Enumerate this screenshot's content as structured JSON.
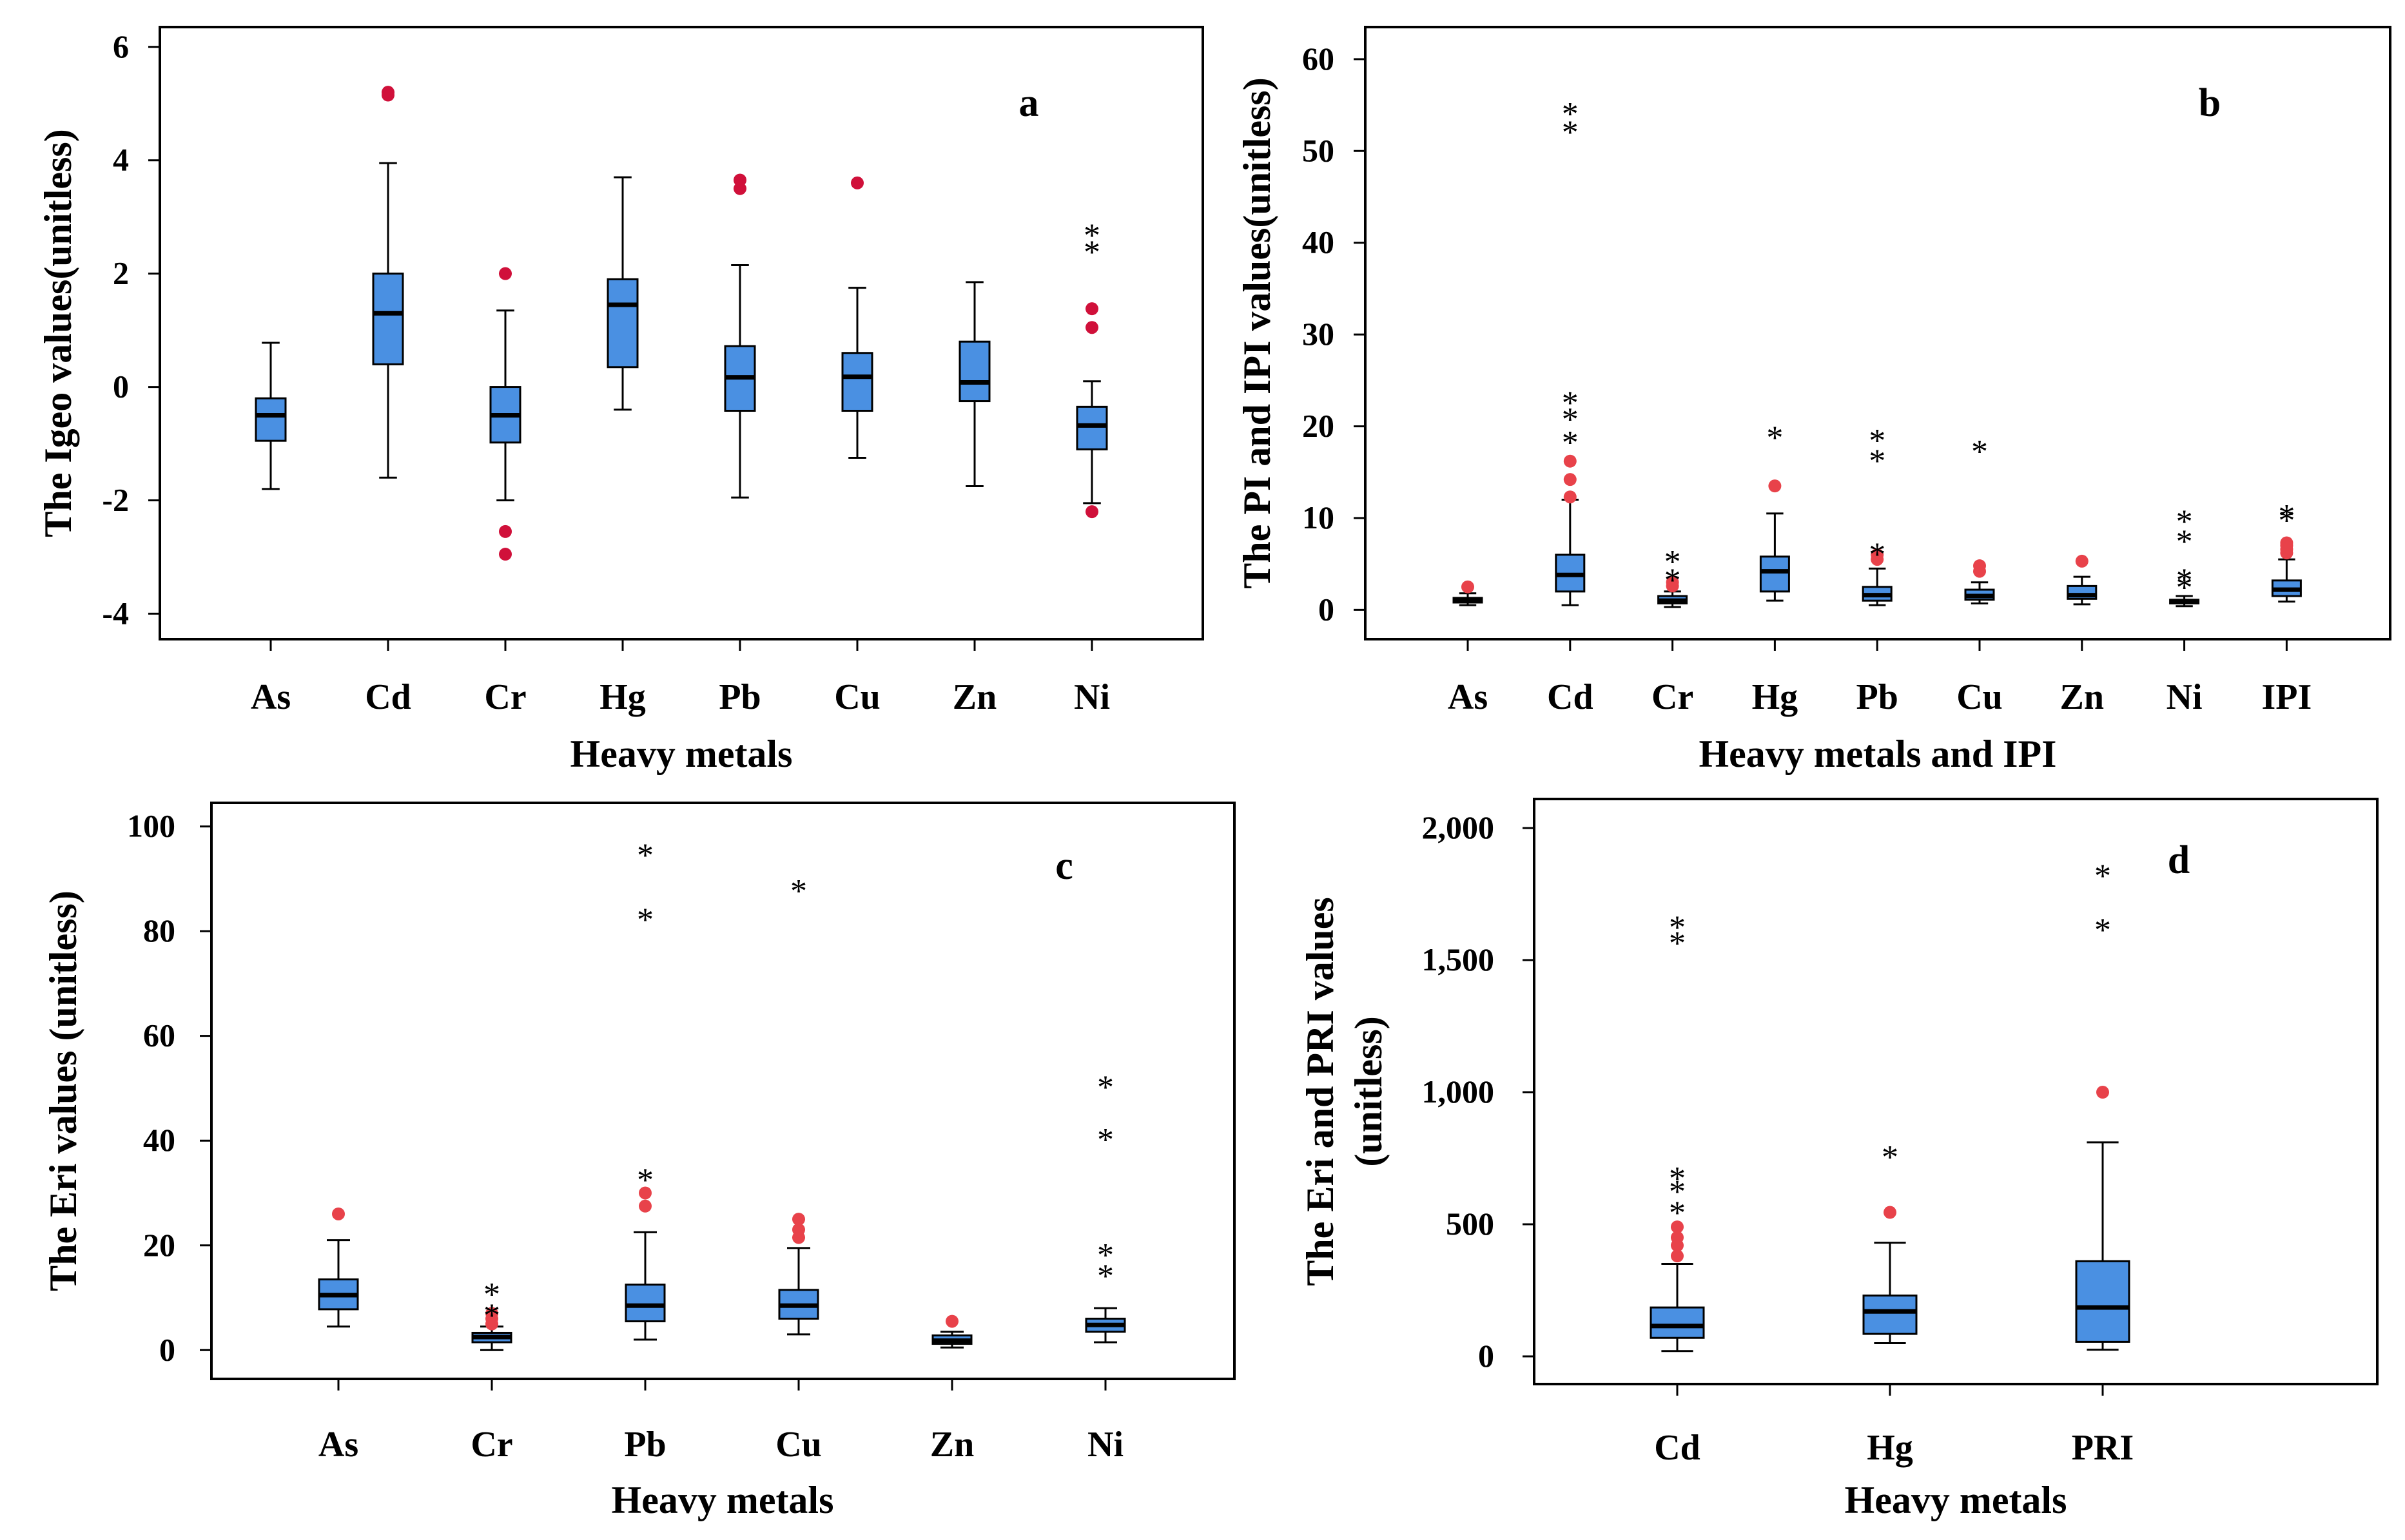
{
  "colors": {
    "box_fill": "#4a90e2",
    "outlier": "#e8424a",
    "outlier_a": "#d0103a",
    "ink": "#000000"
  },
  "chart_data": [
    {
      "id": "a",
      "type": "box",
      "letter": "a",
      "ylabel": "The Igeo values(unitless)",
      "xlabel": "Heavy metals",
      "ylim": [
        -4.45,
        6.35
      ],
      "yticks": [
        -4,
        -2,
        0,
        2,
        4,
        6
      ],
      "ytick_labels": [
        "-4",
        "-2",
        "0",
        "2",
        "4",
        "6"
      ],
      "outlier_color": "#d0103a",
      "boxes": [
        {
          "cat": "As",
          "min": -1.8,
          "q1": -0.95,
          "med": -0.5,
          "q3": -0.2,
          "max": 0.78,
          "outliers": [],
          "extremes": []
        },
        {
          "cat": "Cd",
          "min": -1.6,
          "q1": 0.4,
          "med": 1.3,
          "q3": 2.0,
          "max": 3.95,
          "outliers": [
            5.15,
            5.2
          ],
          "extremes": []
        },
        {
          "cat": "Cr",
          "min": -2.0,
          "q1": -0.98,
          "med": -0.5,
          "q3": 0.0,
          "max": 1.35,
          "outliers": [
            2.0,
            -2.55,
            -2.95
          ],
          "extremes": []
        },
        {
          "cat": "Hg",
          "min": -0.4,
          "q1": 0.35,
          "med": 1.45,
          "q3": 1.9,
          "max": 3.7,
          "outliers": [],
          "extremes": []
        },
        {
          "cat": "Pb",
          "min": -1.95,
          "q1": -0.42,
          "med": 0.17,
          "q3": 0.72,
          "max": 2.15,
          "outliers": [
            3.65,
            3.5
          ],
          "extremes": []
        },
        {
          "cat": "Cu",
          "min": -1.25,
          "q1": -0.42,
          "med": 0.18,
          "q3": 0.6,
          "max": 1.75,
          "outliers": [
            3.6
          ],
          "extremes": []
        },
        {
          "cat": "Zn",
          "min": -1.75,
          "q1": -0.25,
          "med": 0.08,
          "q3": 0.8,
          "max": 1.85,
          "outliers": [],
          "extremes": []
        },
        {
          "cat": "Ni",
          "min": -2.05,
          "q1": -1.1,
          "med": -0.68,
          "q3": -0.35,
          "max": 0.1,
          "outliers": [
            1.38,
            1.05,
            -2.2
          ],
          "extremes": [
            2.8,
            2.5
          ]
        }
      ]
    },
    {
      "id": "b",
      "type": "box",
      "letter": "b",
      "ylabel": "The PI and IPI values(unitless)",
      "xlabel": "Heavy metals and IPI",
      "ylim": [
        -3.2,
        63.5
      ],
      "yticks": [
        0,
        10,
        20,
        30,
        40,
        50,
        60
      ],
      "ytick_labels": [
        "0",
        "10",
        "20",
        "30",
        "40",
        "50",
        "60"
      ],
      "outlier_color": "#e8424a",
      "boxes": [
        {
          "cat": "As",
          "min": 0.5,
          "q1": 0.8,
          "med": 1.0,
          "q3": 1.3,
          "max": 1.8,
          "outliers": [
            2.5
          ],
          "extremes": []
        },
        {
          "cat": "Cd",
          "min": 0.5,
          "q1": 2.0,
          "med": 3.8,
          "q3": 6.0,
          "max": 12.0,
          "outliers": [
            12.3,
            14.2,
            16.2
          ],
          "extremes": [
            19,
            21.5,
            23.3,
            52.8,
            54.8
          ]
        },
        {
          "cat": "Cr",
          "min": 0.3,
          "q1": 0.7,
          "med": 1.0,
          "q3": 1.5,
          "max": 2.0,
          "outliers": [
            2.6,
            3.0
          ],
          "extremes": [
            4.0,
            6.0
          ]
        },
        {
          "cat": "Hg",
          "min": 1.0,
          "q1": 2.0,
          "med": 4.2,
          "q3": 5.8,
          "max": 10.5,
          "outliers": [
            13.5
          ],
          "extremes": [
            19.5
          ]
        },
        {
          "cat": "Pb",
          "min": 0.5,
          "q1": 1.0,
          "med": 1.6,
          "q3": 2.5,
          "max": 4.5,
          "outliers": [
            5.5,
            6.0
          ],
          "extremes": [
            6.8,
            17.0,
            19.2
          ]
        },
        {
          "cat": "Cu",
          "min": 0.7,
          "q1": 1.1,
          "med": 1.5,
          "q3": 2.2,
          "max": 3.0,
          "outliers": [
            4.2,
            4.8
          ],
          "extremes": [
            18.0
          ]
        },
        {
          "cat": "Zn",
          "min": 0.6,
          "q1": 1.2,
          "med": 1.6,
          "q3": 2.6,
          "max": 3.6,
          "outliers": [
            5.3
          ],
          "extremes": []
        },
        {
          "cat": "Ni",
          "min": 0.4,
          "q1": 0.7,
          "med": 0.9,
          "q3": 1.1,
          "max": 1.5,
          "outliers": [],
          "extremes": [
            3.2,
            4.0,
            8.2,
            10.4
          ]
        },
        {
          "cat": "IPI",
          "min": 0.9,
          "q1": 1.5,
          "med": 2.2,
          "q3": 3.2,
          "max": 5.5,
          "outliers": [
            6.2,
            6.6,
            7.0,
            7.3
          ],
          "extremes": [
            10.5,
            11.0
          ]
        }
      ]
    },
    {
      "id": "c",
      "type": "box",
      "letter": "c",
      "ylabel": "The Eri values (unitless)",
      "xlabel": "Heavy metals",
      "ylim": [
        -5.5,
        104.5
      ],
      "yticks": [
        0,
        20,
        40,
        60,
        80,
        100
      ],
      "ytick_labels": [
        "0",
        "20",
        "40",
        "60",
        "80",
        "100"
      ],
      "outlier_color": "#e8424a",
      "boxes": [
        {
          "cat": "As",
          "min": 4.5,
          "q1": 7.8,
          "med": 10.5,
          "q3": 13.5,
          "max": 21.0,
          "outliers": [
            26.0
          ],
          "extremes": []
        },
        {
          "cat": "Cr",
          "min": 0.0,
          "q1": 1.5,
          "med": 2.5,
          "q3": 3.3,
          "max": 4.5,
          "outliers": [
            5.0,
            6.0,
            7.0
          ],
          "extremes": [
            8.0,
            12.0
          ]
        },
        {
          "cat": "Pb",
          "min": 2.0,
          "q1": 5.5,
          "med": 8.5,
          "q3": 12.5,
          "max": 22.5,
          "outliers": [
            27.5,
            30.0
          ],
          "extremes": [
            33.8,
            83.5,
            95.8
          ]
        },
        {
          "cat": "Cu",
          "min": 3.0,
          "q1": 6.0,
          "med": 8.5,
          "q3": 11.5,
          "max": 19.5,
          "outliers": [
            21.5,
            23.0,
            25.0
          ],
          "extremes": [
            89.0
          ]
        },
        {
          "cat": "Zn",
          "min": 0.5,
          "q1": 1.2,
          "med": 1.8,
          "q3": 2.8,
          "max": 3.5,
          "outliers": [
            5.5
          ],
          "extremes": []
        },
        {
          "cat": "Ni",
          "min": 1.5,
          "q1": 3.5,
          "med": 4.8,
          "q3": 6.0,
          "max": 8.0,
          "outliers": [],
          "extremes": [
            15.5,
            19.5,
            41.5,
            51.5
          ]
        }
      ]
    },
    {
      "id": "d",
      "type": "box",
      "letter": "d",
      "ylabel": "The Eri and PRI values",
      "ylabel2": "(unitless)",
      "xlabel": "Heavy metals",
      "ylim": [
        -105,
        2110
      ],
      "yticks": [
        0,
        500,
        1000,
        1500,
        2000
      ],
      "ytick_labels": [
        "0",
        "500",
        "1,000",
        "1,500",
        "2,000"
      ],
      "outlier_color": "#e8424a",
      "boxes": [
        {
          "cat": "Cd",
          "min": 20,
          "q1": 70,
          "med": 115,
          "q3": 185,
          "max": 350,
          "outliers": [
            380,
            420,
            450,
            490
          ],
          "extremes": [
            570,
            650,
            700,
            1590,
            1650
          ]
        },
        {
          "cat": "Hg",
          "min": 50,
          "q1": 85,
          "med": 170,
          "q3": 230,
          "max": 430,
          "outliers": [
            545
          ],
          "extremes": [
            780
          ]
        },
        {
          "cat": "PRI",
          "min": 25,
          "q1": 55,
          "med": 185,
          "q3": 360,
          "max": 810,
          "outliers": [
            1000
          ],
          "extremes": [
            1640,
            1845
          ]
        }
      ]
    }
  ]
}
